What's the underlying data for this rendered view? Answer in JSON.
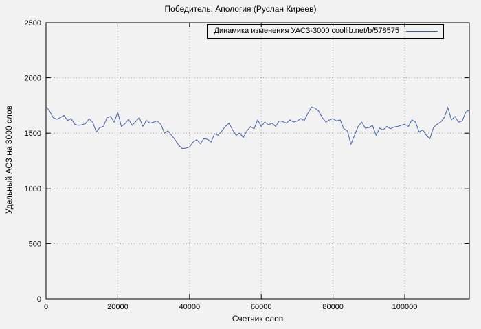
{
  "title": "Победитель. Апология (Руслан Киреев)",
  "legend": {
    "label": "Динамика изменения УАСЗ-3000 coollib.net/b/578575"
  },
  "chart_data": {
    "type": "line",
    "title": "Победитель. Апология (Руслан Киреев)",
    "xlabel": "Счетчик слов",
    "ylabel": "Удельный АСЗ на 3000 слов",
    "xlim": [
      0,
      118000
    ],
    "ylim": [
      0,
      2500
    ],
    "xticks": [
      0,
      20000,
      40000,
      60000,
      80000,
      100000
    ],
    "yticks": [
      0,
      500,
      1000,
      1500,
      2000,
      2500
    ],
    "grid": "dotted",
    "legend_position": "top-right-inside-box",
    "line_color": "#3f5fa7",
    "background_color": "#f2f2f2",
    "series": [
      {
        "name": "Динамика изменения УАСЗ-3000 coollib.net/b/578575",
        "x_start": 0,
        "x_step": 1000,
        "values": [
          1740,
          1700,
          1640,
          1625,
          1640,
          1660,
          1615,
          1630,
          1580,
          1570,
          1575,
          1585,
          1630,
          1600,
          1510,
          1550,
          1560,
          1640,
          1650,
          1600,
          1690,
          1560,
          1585,
          1625,
          1570,
          1605,
          1640,
          1560,
          1615,
          1590,
          1600,
          1610,
          1580,
          1500,
          1520,
          1480,
          1440,
          1390,
          1360,
          1365,
          1375,
          1420,
          1440,
          1405,
          1450,
          1445,
          1420,
          1495,
          1480,
          1520,
          1560,
          1590,
          1530,
          1480,
          1500,
          1460,
          1520,
          1560,
          1540,
          1620,
          1560,
          1600,
          1575,
          1590,
          1560,
          1610,
          1605,
          1590,
          1620,
          1600,
          1610,
          1630,
          1615,
          1680,
          1735,
          1725,
          1700,
          1640,
          1600,
          1620,
          1630,
          1610,
          1620,
          1540,
          1520,
          1400,
          1480,
          1560,
          1600,
          1545,
          1550,
          1570,
          1480,
          1545,
          1530,
          1560,
          1540,
          1555,
          1560,
          1570,
          1580,
          1560,
          1620,
          1600,
          1510,
          1530,
          1480,
          1450,
          1550,
          1580,
          1600,
          1640,
          1730,
          1620,
          1650,
          1600,
          1610,
          1690,
          1710
        ]
      }
    ]
  }
}
